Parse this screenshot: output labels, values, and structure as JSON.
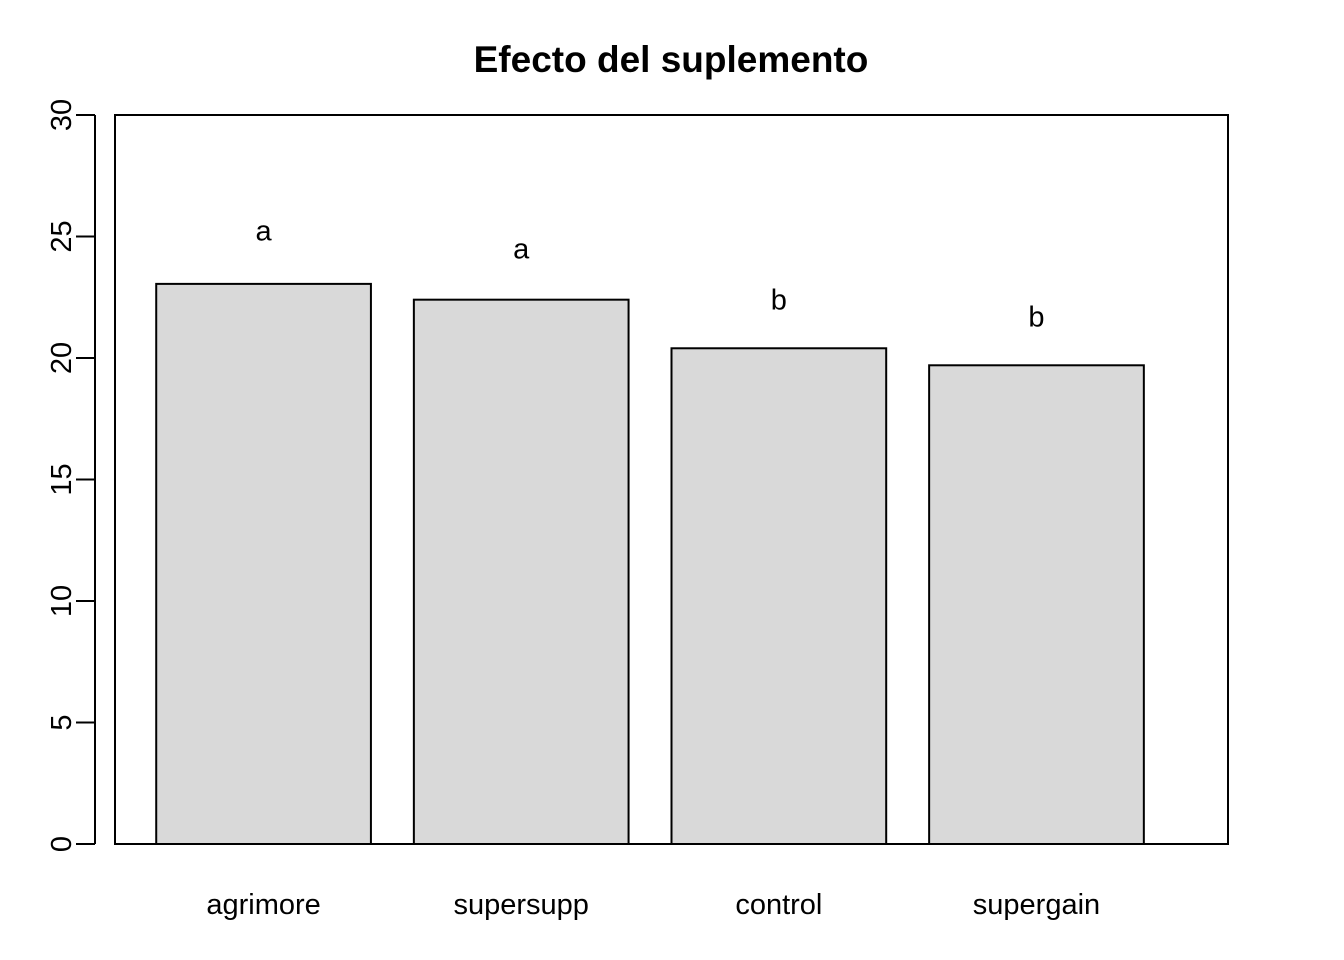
{
  "chart_data": {
    "type": "bar",
    "title": "Efecto del suplemento",
    "xlabel": "",
    "ylabel": "",
    "categories": [
      "agrimore",
      "supersupp",
      "control",
      "supergain"
    ],
    "values": [
      23.05,
      22.4,
      20.4,
      19.7
    ],
    "group_letters": [
      "a",
      "a",
      "b",
      "b"
    ],
    "group_letter_y": [
      25.25,
      24.5,
      22.4,
      21.7
    ],
    "ylim": [
      0,
      30
    ],
    "yticks": [
      0,
      5,
      10,
      15,
      20,
      25,
      30
    ],
    "ytick_labels": [
      "0",
      "5",
      "10",
      "15",
      "20",
      "25",
      "30"
    ],
    "grid": false,
    "legend": "none",
    "colors": {
      "bar_fill": "#d9d9d9",
      "bar_stroke": "#000000",
      "text": "#000000",
      "background": "#ffffff"
    }
  }
}
